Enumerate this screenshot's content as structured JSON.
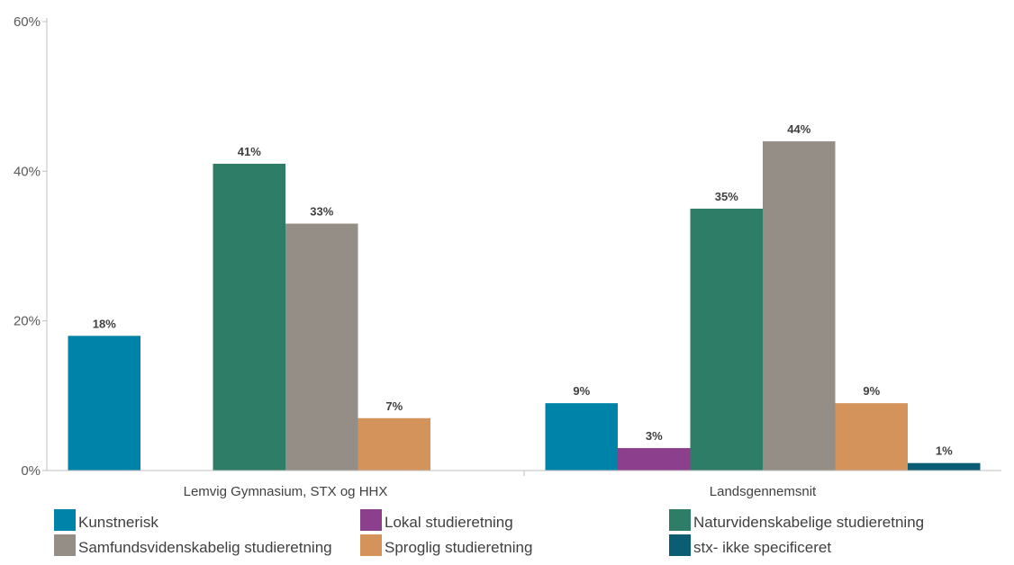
{
  "chart_data": {
    "type": "bar",
    "categories": [
      "Lemvig Gymnasium, STX og HHX",
      "Landsgennemsnit"
    ],
    "ylim": [
      0,
      60
    ],
    "yticks": [
      "0%",
      "20%",
      "40%",
      "60%"
    ],
    "ytick_values": [
      0,
      20,
      40,
      60
    ],
    "grid": false,
    "legend_position": "bottom",
    "series": [
      {
        "name": "Kunstnerisk",
        "color": "#0083A9",
        "values": [
          18,
          9
        ],
        "labels": [
          "18%",
          "9%"
        ]
      },
      {
        "name": "Lokal studieretning",
        "color": "#8B3F8C",
        "values": [
          null,
          3
        ],
        "labels": [
          "",
          "3%"
        ]
      },
      {
        "name": "Naturvidenskabelige studieretning",
        "color": "#2E7D67",
        "values": [
          41,
          35
        ],
        "labels": [
          "41%",
          "35%"
        ]
      },
      {
        "name": "Samfundsvidenskabelig studieretning",
        "color": "#958E86",
        "values": [
          33,
          44
        ],
        "labels": [
          "33%",
          "44%"
        ]
      },
      {
        "name": "Sproglig studieretning",
        "color": "#D4935A",
        "values": [
          7,
          9
        ],
        "labels": [
          "7%",
          "9%"
        ]
      },
      {
        "name": "stx- ikke specificeret",
        "color": "#0B5D73",
        "values": [
          null,
          1
        ],
        "labels": [
          "",
          "1%"
        ]
      }
    ]
  }
}
